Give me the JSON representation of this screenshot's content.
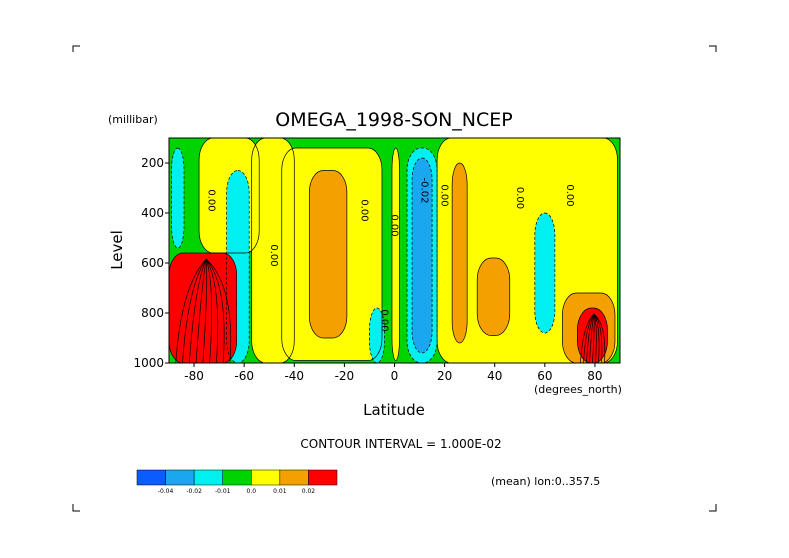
{
  "chart_data": {
    "type": "heatmap",
    "title": "OMEGA_1998-SON_NCEP",
    "xlabel": "Latitude",
    "x_units": "(degrees_north)",
    "ylabel": "Level",
    "y_units": "(millibar)",
    "xlim": [
      -90,
      90
    ],
    "ylim": [
      1000,
      100
    ],
    "y_axis_inverted": true,
    "x_ticks": [
      -80,
      -60,
      -40,
      -20,
      0,
      20,
      40,
      60,
      80
    ],
    "y_ticks": [
      1000,
      800,
      600,
      400,
      200
    ],
    "contour_interval_text": "CONTOUR INTERVAL = 1.000E-02",
    "mean_note": "(mean) lon:0..357.5",
    "contour_labels": [
      {
        "text": "0.00",
        "lat": -73,
        "lev": 350
      },
      {
        "text": "0.00",
        "lat": -48,
        "lev": 570
      },
      {
        "text": "0.00",
        "lat": -12,
        "lev": 390
      },
      {
        "text": "0.00",
        "lat": 0,
        "lev": 450
      },
      {
        "text": "0.00",
        "lat": -4,
        "lev": 830
      },
      {
        "text": "-0.02",
        "lat": 12,
        "lev": 310
      },
      {
        "text": "0.00",
        "lat": 20,
        "lev": 330
      },
      {
        "text": "0.00",
        "lat": 50,
        "lev": 340
      },
      {
        "text": "0.00",
        "lat": 70,
        "lev": 330
      }
    ],
    "colorbar": {
      "levels": [
        "-0.04",
        "-0.02",
        "-0.01",
        "0.0",
        "0.01",
        "0.02"
      ],
      "bins": [
        {
          "range": "< -0.04",
          "color": "#0a5cff"
        },
        {
          "range": "-0.04 to -0.02",
          "color": "#1aa7f0"
        },
        {
          "range": "-0.02 to -0.01",
          "color": "#00f0f0"
        },
        {
          "range": "-0.01 to 0.0",
          "color": "#00d400"
        },
        {
          "range": "0.0 to 0.01",
          "color": "#ffff00"
        },
        {
          "range": "0.01 to 0.02",
          "color": "#f3a000"
        },
        {
          "range": "> 0.02",
          "color": "#ff0000"
        }
      ]
    },
    "regions": [
      {
        "name": "yellow-upper-left",
        "color": "#ffff00",
        "lat": [
          -78,
          -54
        ],
        "lev": [
          100,
          560
        ]
      },
      {
        "name": "cyan-upper-far-left",
        "color": "#00f0f0",
        "lat": [
          -89,
          -84
        ],
        "lev": [
          140,
          540
        ]
      },
      {
        "name": "cyan-left",
        "color": "#00f0f0",
        "lat": [
          -67,
          -58
        ],
        "lev": [
          230,
          1000
        ]
      },
      {
        "name": "red-lower-left",
        "color": "#ff0000",
        "lat": [
          -90,
          -63
        ],
        "lev": [
          560,
          1000
        ]
      },
      {
        "name": "yellow-left-band",
        "color": "#ffff00",
        "lat": [
          -57,
          -40
        ],
        "lev": [
          100,
          1000
        ]
      },
      {
        "name": "yellow-mid-broad",
        "color": "#ffff00",
        "lat": [
          -45,
          -5
        ],
        "lev": [
          140,
          990
        ]
      },
      {
        "name": "orange-mid",
        "color": "#f3a000",
        "lat": [
          -34,
          -19
        ],
        "lev": [
          230,
          900
        ]
      },
      {
        "name": "cyan-lower-mid",
        "color": "#00f0f0",
        "lat": [
          -10,
          -4
        ],
        "lev": [
          780,
          1000
        ]
      },
      {
        "name": "yellow-eq-thin",
        "color": "#ffff00",
        "lat": [
          -1,
          2
        ],
        "lev": [
          140,
          990
        ]
      },
      {
        "name": "cyan-eq-column",
        "color": "#00f0f0",
        "lat": [
          5,
          17
        ],
        "lev": [
          140,
          1000
        ]
      },
      {
        "name": "blue-eq-column",
        "color": "#1aa7f0",
        "lat": [
          7,
          15
        ],
        "lev": [
          180,
          960
        ]
      },
      {
        "name": "yellow-nh-broad",
        "color": "#ffff00",
        "lat": [
          17,
          89
        ],
        "lev": [
          100,
          1000
        ]
      },
      {
        "name": "orange-nh-thin",
        "color": "#f3a000",
        "lat": [
          23,
          29
        ],
        "lev": [
          200,
          920
        ]
      },
      {
        "name": "orange-nh-mid",
        "color": "#f3a000",
        "lat": [
          33,
          46
        ],
        "lev": [
          580,
          890
        ]
      },
      {
        "name": "cyan-nh-mid",
        "color": "#00f0f0",
        "lat": [
          56,
          64
        ],
        "lev": [
          400,
          880
        ]
      },
      {
        "name": "orange-nh-high",
        "color": "#f3a000",
        "lat": [
          67,
          88
        ],
        "lev": [
          720,
          1000
        ]
      },
      {
        "name": "red-nh-high",
        "color": "#ff0000",
        "lat": [
          73,
          85
        ],
        "lev": [
          780,
          1000
        ]
      }
    ]
  }
}
